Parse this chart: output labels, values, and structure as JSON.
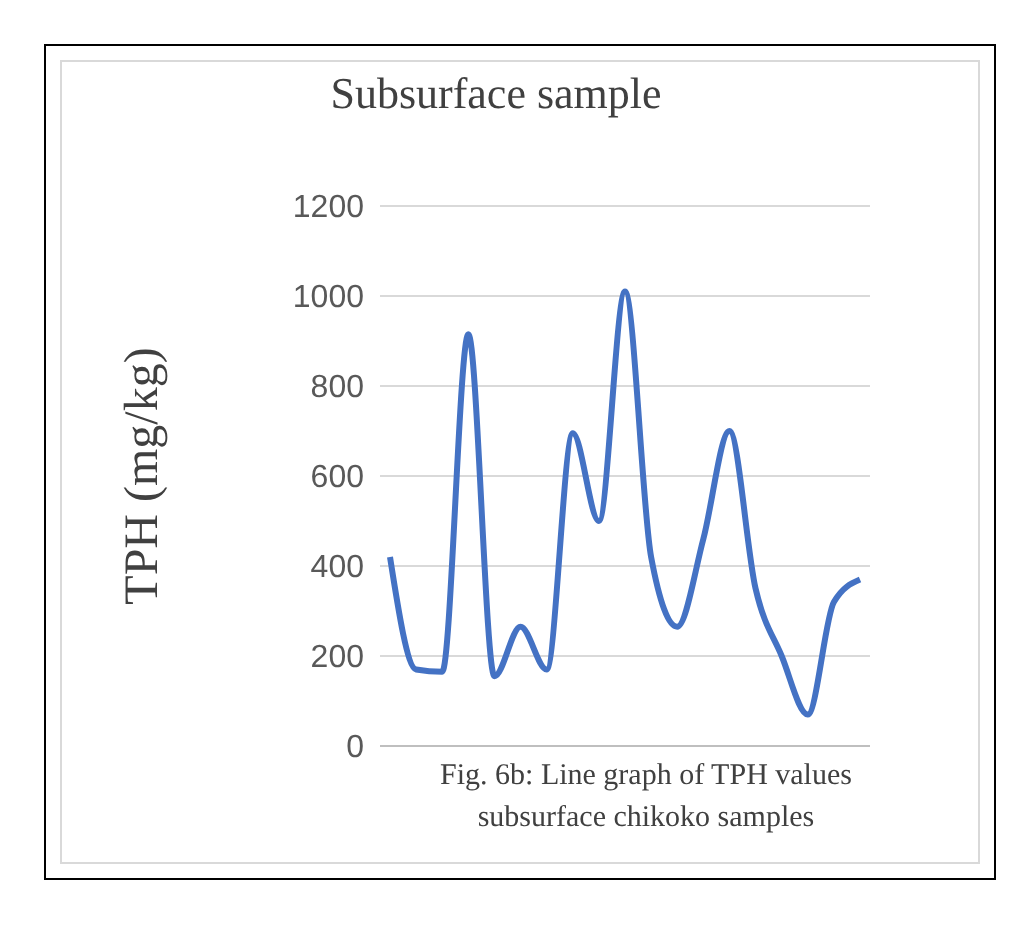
{
  "chart_data": {
    "type": "line",
    "title": "Subsurface sample",
    "ylabel": "TPH (mg/kg)",
    "annotations": [
      "Fig. 6b: Line graph of TPH values subsurface chikoko samples"
    ],
    "categories": [
      null,
      null,
      null,
      null,
      null,
      null,
      null,
      null,
      null,
      null,
      null,
      null,
      null,
      null,
      null,
      null,
      null,
      null,
      null
    ],
    "series": [
      {
        "color": "#4472c4",
        "values": [
          420,
          170,
          165,
          915,
          155,
          265,
          170,
          695,
          500,
          1010,
          420,
          265,
          460,
          700,
          350,
          200,
          70,
          320,
          370
        ]
      }
    ],
    "ylim": [
      0,
      1200
    ],
    "yticks": [
      0,
      200,
      400,
      600,
      800,
      1000,
      1200
    ],
    "grid": "y",
    "marker": "none",
    "line_style": "solid",
    "tick_labels": "y",
    "legend": false
  }
}
